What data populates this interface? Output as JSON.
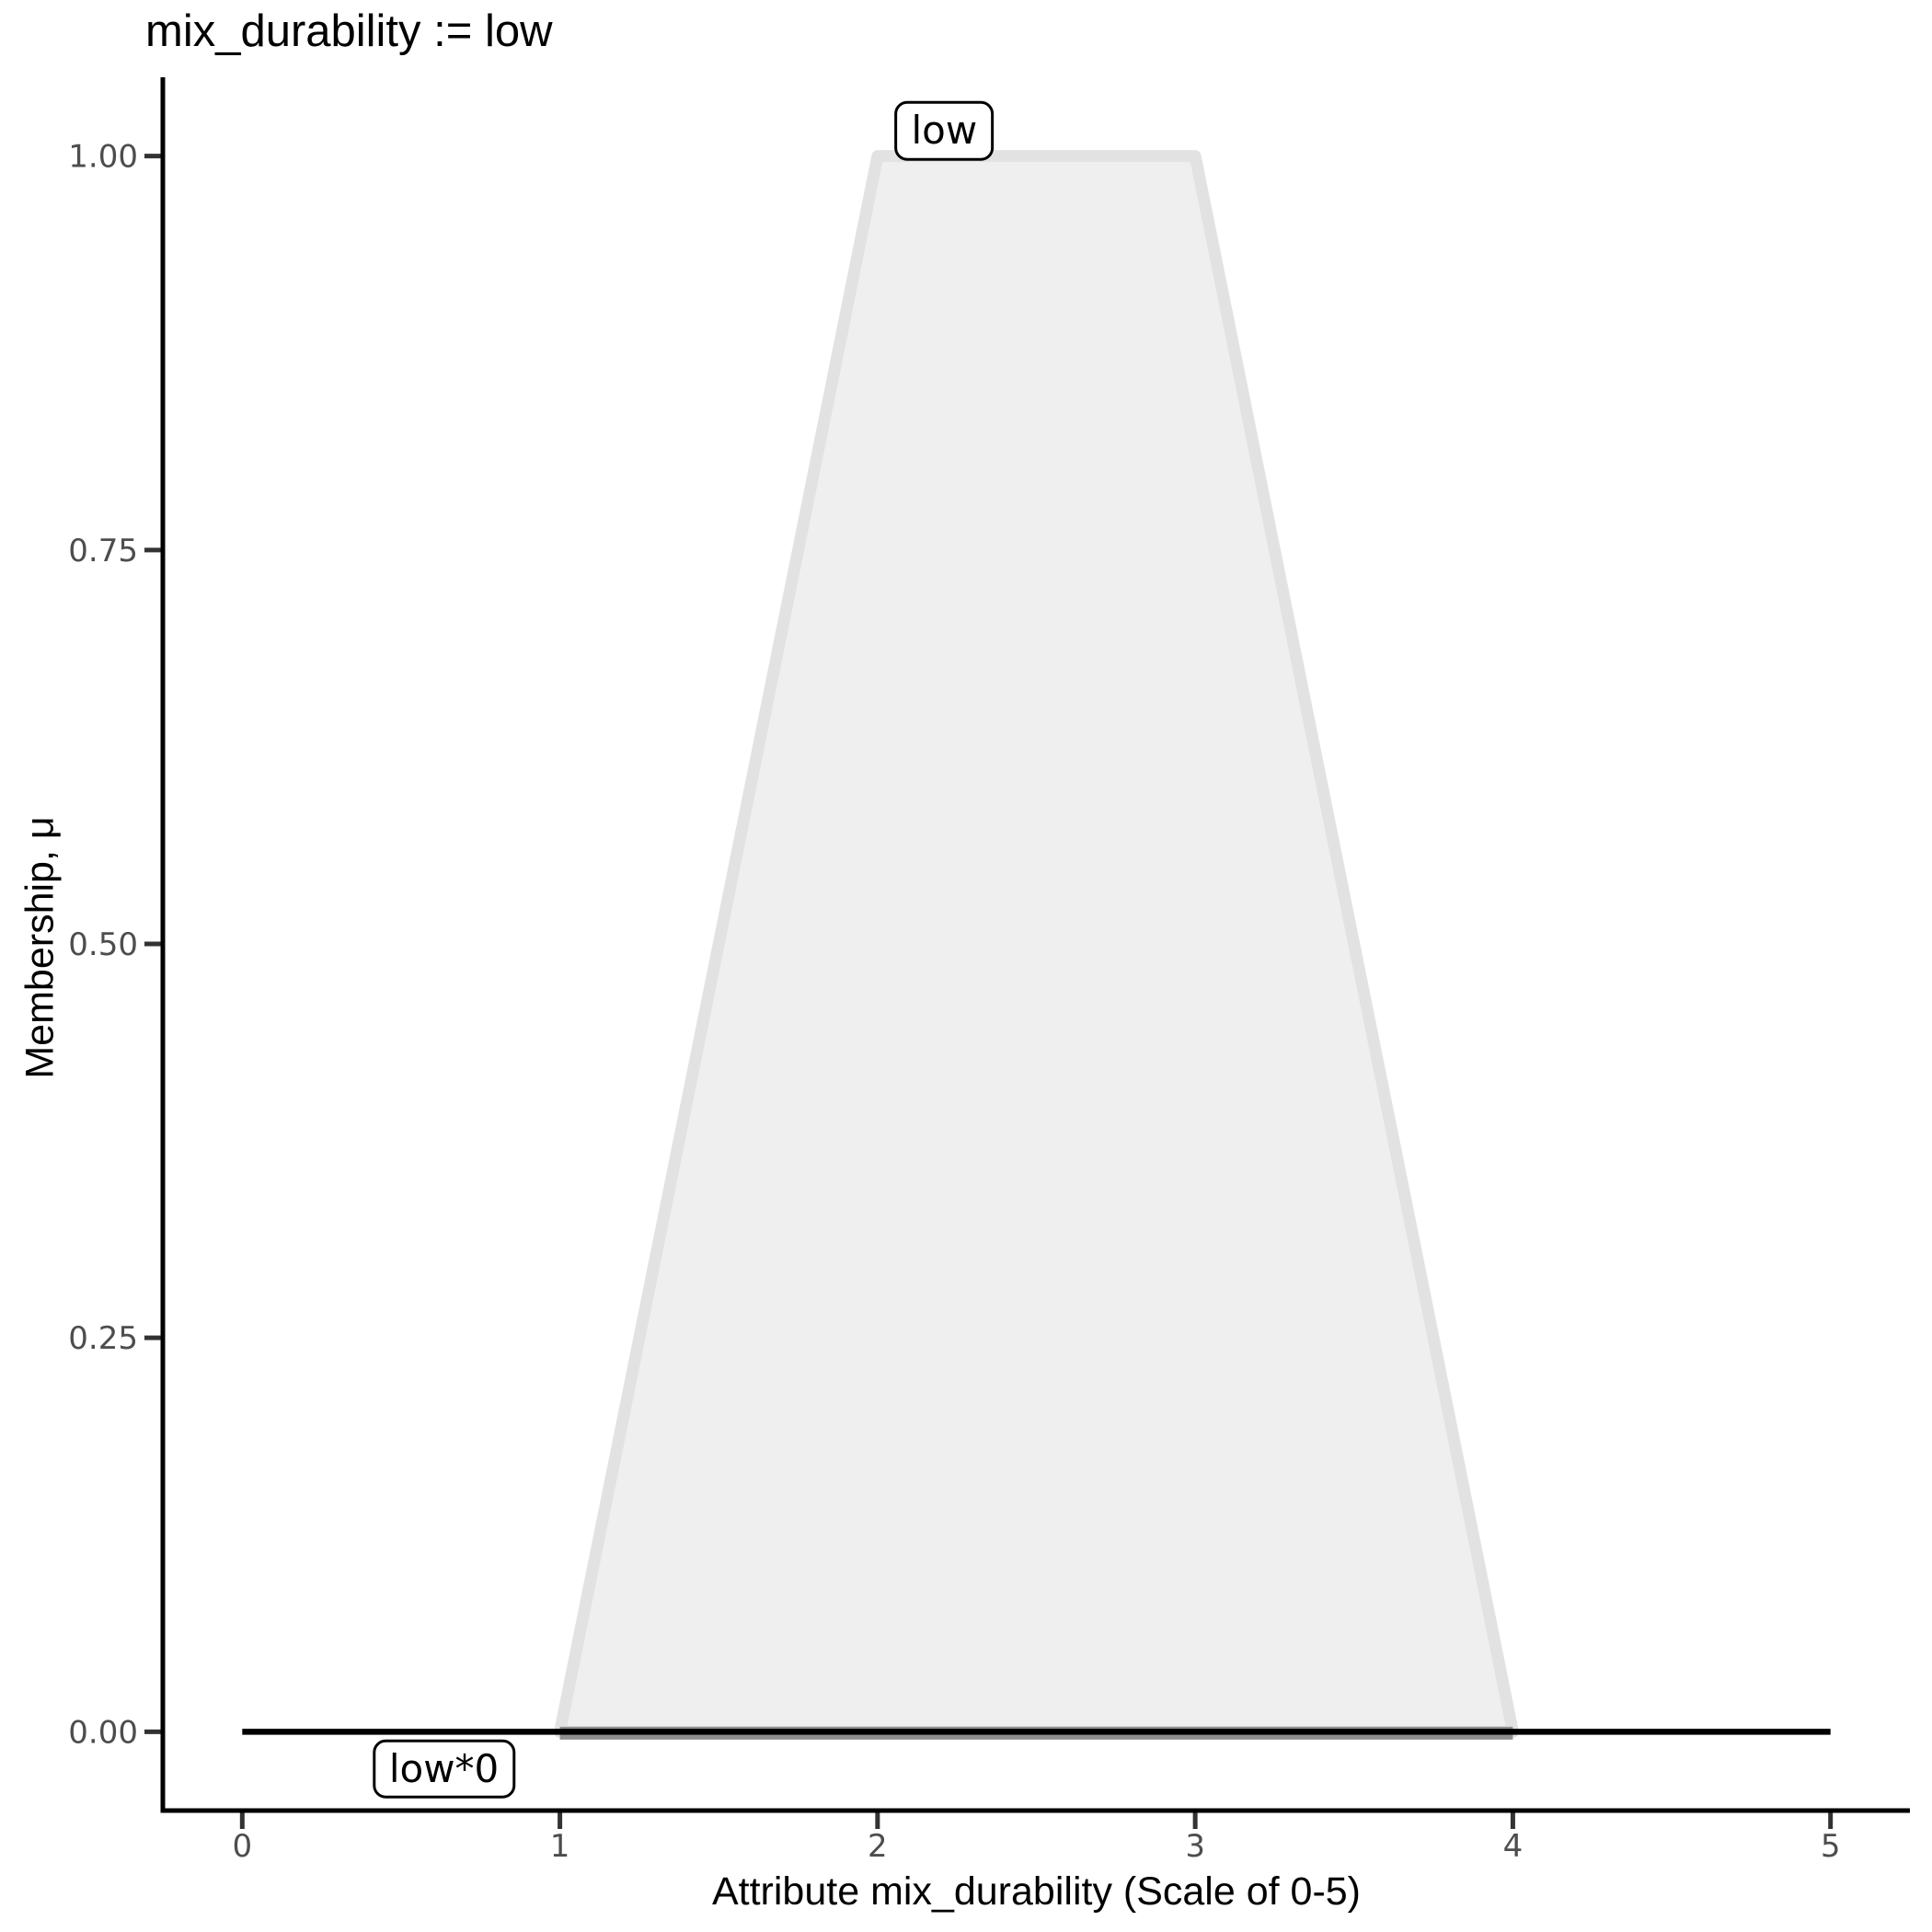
{
  "chart_data": {
    "type": "area",
    "title": "mix_durability := low",
    "xlabel": "Attribute mix_durability (Scale of 0-5)",
    "ylabel": "Membership, μ",
    "xlim": [
      0,
      5
    ],
    "ylim": [
      0,
      1
    ],
    "grid": false,
    "legend": "none",
    "x_ticks": {
      "values": [
        0,
        1,
        2,
        3,
        4,
        5
      ],
      "labels": [
        "0",
        "1",
        "2",
        "3",
        "4",
        "5"
      ]
    },
    "y_ticks": {
      "values": [
        0,
        0.25,
        0.5,
        0.75,
        1
      ],
      "labels": [
        "0.00",
        "0.25",
        "0.50",
        "0.75",
        "1.00"
      ]
    },
    "series": [
      {
        "name": "low",
        "kind": "membership-trapezoid",
        "points": [
          [
            1,
            0
          ],
          [
            2,
            1
          ],
          [
            3,
            1
          ],
          [
            4,
            0
          ]
        ],
        "fill": "#efefef",
        "stroke": "#e2e2e2",
        "annotation": {
          "text": "low",
          "x": 2.21,
          "y": 1.016
        }
      },
      {
        "name": "low*0",
        "kind": "line",
        "points": [
          [
            0,
            0
          ],
          [
            5,
            0
          ]
        ],
        "stroke": "#000000",
        "annotation": {
          "text": "low*0",
          "x": 0.635,
          "y": -0.0235
        }
      }
    ],
    "overlap_segment": {
      "from": [
        1,
        0
      ],
      "to": [
        4,
        0
      ],
      "color": "#8f8f8f"
    },
    "style_colors": {
      "axis_line": "#000000",
      "tick_mark": "#333333",
      "tick_label": "#4d4d4d",
      "background": "#ffffff"
    }
  }
}
